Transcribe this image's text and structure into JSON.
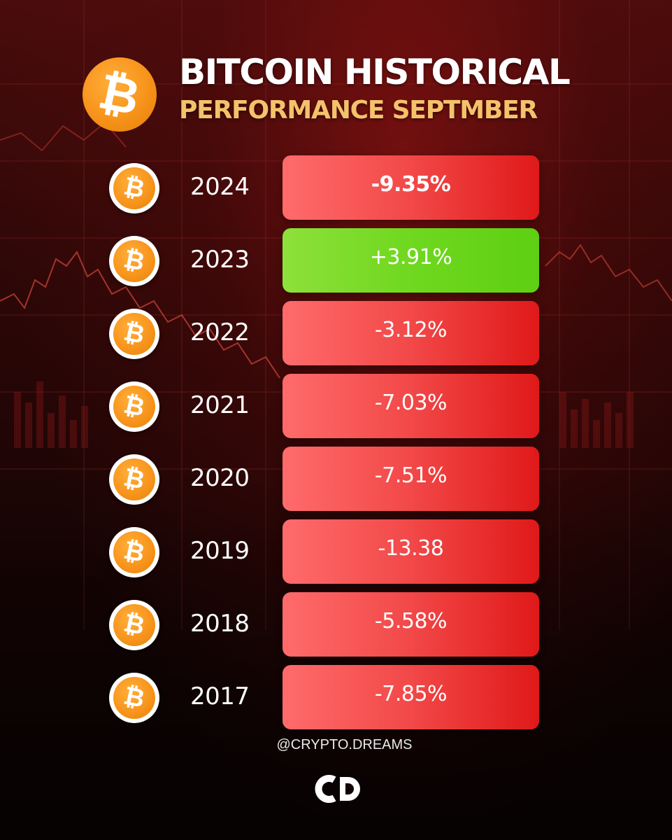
{
  "header": {
    "title": "BITCOIN HISTORICAL",
    "subtitle": "PERFORMANCE SEPTMBER",
    "logo_icon": "bitcoin-icon"
  },
  "colors": {
    "negative": "#f24848",
    "positive": "#6fd81f",
    "accent_gold": "#f4c26b",
    "bitcoin_orange": "#f7931a"
  },
  "rows": [
    {
      "year": "2024",
      "value": "-9.35%",
      "trend": "negative",
      "emphasis": true
    },
    {
      "year": "2023",
      "value": "+3.91%",
      "trend": "positive",
      "emphasis": false
    },
    {
      "year": "2022",
      "value": "-3.12%",
      "trend": "negative",
      "emphasis": false
    },
    {
      "year": "2021",
      "value": "-7.03%",
      "trend": "negative",
      "emphasis": false
    },
    {
      "year": "2020",
      "value": "-7.51%",
      "trend": "negative",
      "emphasis": false
    },
    {
      "year": "2019",
      "value": "-13.38",
      "trend": "negative",
      "emphasis": false
    },
    {
      "year": "2018",
      "value": "-5.58%",
      "trend": "negative",
      "emphasis": false
    },
    {
      "year": "2017",
      "value": "-7.85%",
      "trend": "negative",
      "emphasis": false
    }
  ],
  "footer": {
    "handle": "@CRYPTO.DREAMS",
    "brand": "CD"
  }
}
